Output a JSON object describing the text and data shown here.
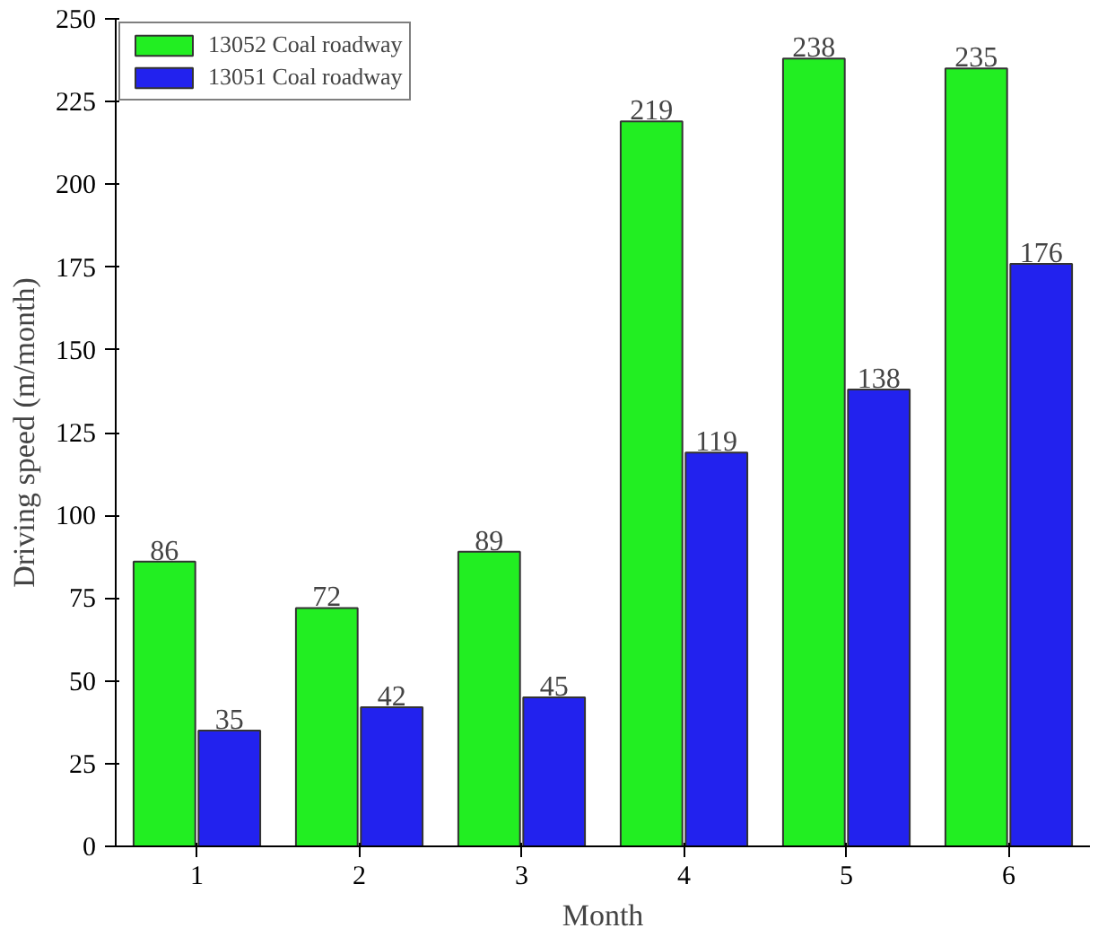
{
  "chart_data": {
    "type": "bar",
    "xlabel": "Month",
    "ylabel": "Driving speed (m/month)",
    "categories": [
      "1",
      "2",
      "3",
      "4",
      "5",
      "6"
    ],
    "series": [
      {
        "name": "13052 Coal roadway",
        "color": "#22ee22",
        "values": [
          86,
          72,
          89,
          219,
          238,
          235
        ]
      },
      {
        "name": "13051 Coal roadway",
        "color": "#2222ee",
        "values": [
          35,
          42,
          45,
          119,
          138,
          176
        ]
      }
    ],
    "ylim": [
      0,
      250
    ],
    "yticks": [
      0,
      25,
      50,
      75,
      100,
      125,
      150,
      175,
      200,
      225,
      250
    ],
    "data_labels": true,
    "legend": "top left",
    "grid": false
  }
}
